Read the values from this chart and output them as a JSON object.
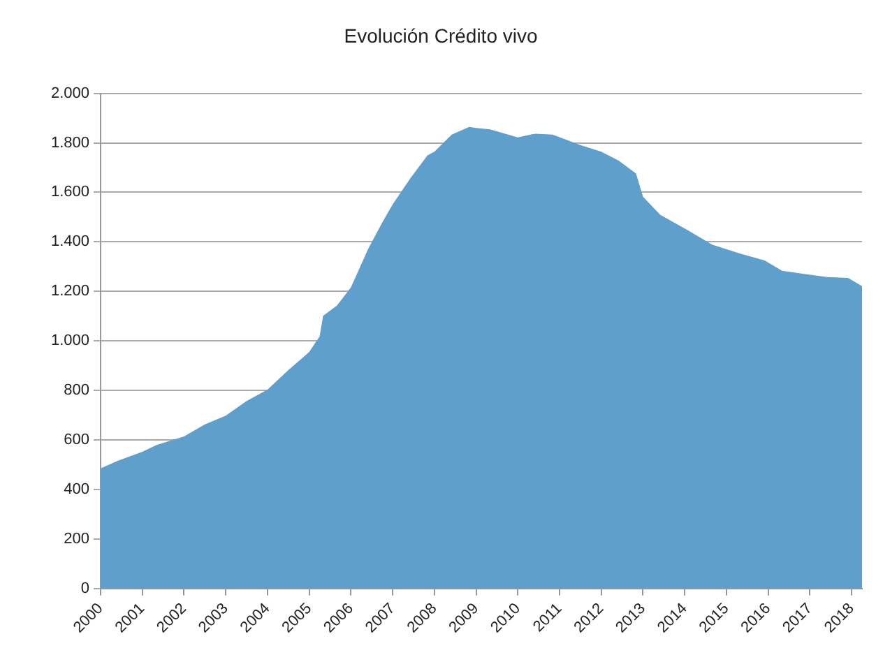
{
  "chart_data": {
    "type": "area",
    "title": "Evolución Crédito vivo",
    "color": "#5f9fcb",
    "x": [
      "2000-01",
      "2000-06",
      "2001-01",
      "2001-05",
      "2002-01",
      "2002-07",
      "2003-01",
      "2003-07",
      "2004-01",
      "2004-07",
      "2005-01",
      "2005-04",
      "2005-05",
      "2005-09",
      "2006-01",
      "2006-06",
      "2006-10",
      "2007-01",
      "2007-06",
      "2007-11",
      "2008-01",
      "2008-06",
      "2008-11",
      "2009-01",
      "2009-05",
      "2010-01",
      "2010-06",
      "2010-11",
      "2011-07",
      "2012-01",
      "2012-06",
      "2012-11",
      "2013-01",
      "2013-06",
      "2014-02",
      "2014-09",
      "2015-05",
      "2015-12",
      "2016-05",
      "2016-12",
      "2017-06",
      "2017-12",
      "2018-04"
    ],
    "values": [
      485,
      516,
      552,
      579,
      614,
      663,
      698,
      757,
      803,
      882,
      955,
      1018,
      1101,
      1143,
      1216,
      1373,
      1478,
      1551,
      1655,
      1749,
      1764,
      1833,
      1864,
      1860,
      1854,
      1822,
      1837,
      1833,
      1791,
      1764,
      1728,
      1676,
      1582,
      1509,
      1446,
      1388,
      1352,
      1325,
      1283,
      1269,
      1258,
      1254,
      1221
    ],
    "xlim": [
      "2000-01",
      "2018-04"
    ],
    "xticks": [
      "2000",
      "2001",
      "2002",
      "2003",
      "2004",
      "2005",
      "2006",
      "2007",
      "2008",
      "2009",
      "2010",
      "2011",
      "2012",
      "2013",
      "2014",
      "2015",
      "2016",
      "2017",
      "2018"
    ],
    "ylim": [
      0,
      2000
    ],
    "yticks": [
      {
        "value": 0,
        "label": "0"
      },
      {
        "value": 200,
        "label": "200"
      },
      {
        "value": 400,
        "label": "400"
      },
      {
        "value": 600,
        "label": "600"
      },
      {
        "value": 800,
        "label": "800"
      },
      {
        "value": 1000,
        "label": "1.000"
      },
      {
        "value": 1200,
        "label": "1.200"
      },
      {
        "value": 1400,
        "label": "1.400"
      },
      {
        "value": 1600,
        "label": "1.600"
      },
      {
        "value": 1800,
        "label": "1.800"
      },
      {
        "value": 2000,
        "label": "2.000"
      }
    ],
    "grid": "y",
    "legend": false
  }
}
